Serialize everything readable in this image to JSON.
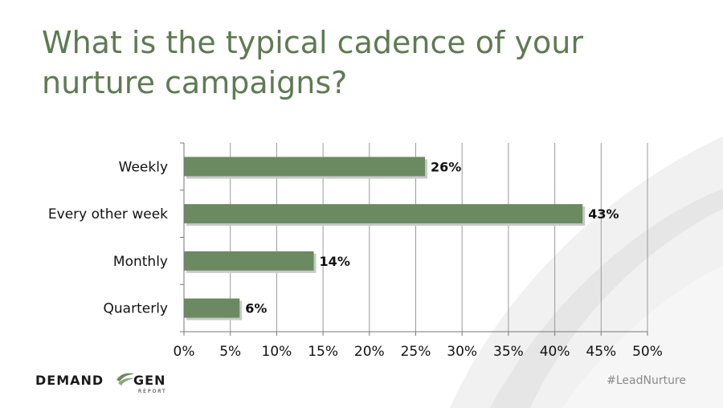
{
  "slide": {
    "title_line1": "What is the typical cadence of your",
    "title_line2": "nurture campaigns?",
    "hashtag": "#LeadNurture",
    "logo": {
      "part1": "DEMAND",
      "part2": "GEN",
      "sub": "REPORT"
    }
  },
  "colors": {
    "bar": "#6b8a61",
    "title": "#5f7a54",
    "grid": "#999999"
  },
  "chart_data": {
    "type": "bar",
    "orientation": "horizontal",
    "categories": [
      "Weekly",
      "Every other week",
      "Monthly",
      "Quarterly"
    ],
    "values": [
      26,
      43,
      14,
      6
    ],
    "value_labels": [
      "26%",
      "43%",
      "14%",
      "6%"
    ],
    "xlim": [
      0,
      50
    ],
    "x_ticks": [
      0,
      5,
      10,
      15,
      20,
      25,
      30,
      35,
      40,
      45,
      50
    ],
    "x_tick_labels": [
      "0%",
      "5%",
      "10%",
      "15%",
      "20%",
      "25%",
      "30%",
      "35%",
      "40%",
      "45%",
      "50%"
    ],
    "grid": true,
    "title": "What is the typical cadence of your nurture campaigns?",
    "xlabel": "",
    "ylabel": ""
  }
}
